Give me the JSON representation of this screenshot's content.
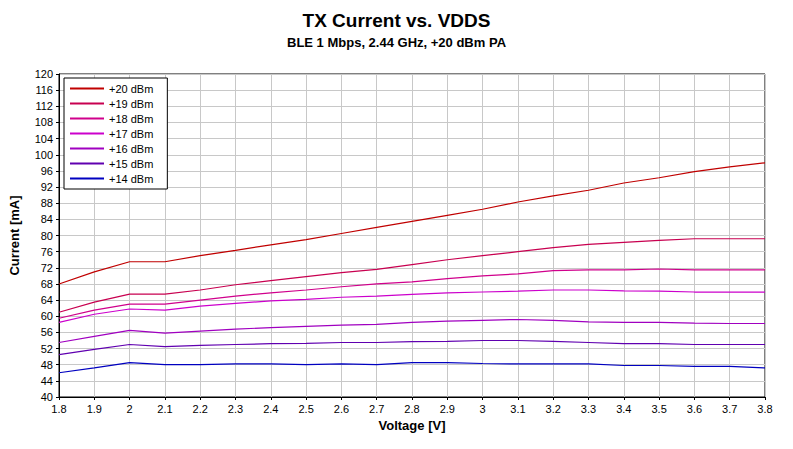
{
  "chart_data": {
    "type": "line",
    "title": "TX Current vs. VDDS",
    "subtitle": "BLE 1 Mbps, 2.44 GHz, +20 dBm PA",
    "x_label": "Voltage [V]",
    "y_label": "Current [mA]",
    "x": [
      1.8,
      1.9,
      2,
      2.1,
      2.2,
      2.3,
      2.4,
      2.5,
      2.6,
      2.7,
      2.8,
      2.9,
      3,
      3.1,
      3.2,
      3.3,
      3.4,
      3.5,
      3.6,
      3.7,
      3.8
    ],
    "xlim": [
      1.8,
      3.8
    ],
    "xticks": [
      1.8,
      1.9,
      2,
      2.1,
      2.2,
      2.3,
      2.4,
      2.5,
      2.6,
      2.7,
      2.8,
      2.9,
      3,
      3.1,
      3.2,
      3.3,
      3.4,
      3.5,
      3.6,
      3.7,
      3.8
    ],
    "ylim": [
      40,
      120
    ],
    "yticks": [
      40,
      44,
      48,
      52,
      56,
      60,
      64,
      68,
      72,
      76,
      80,
      84,
      88,
      92,
      96,
      100,
      104,
      108,
      112,
      116,
      120
    ],
    "grid": true,
    "legend": "upper left",
    "series": [
      {
        "name": "+20 dBm",
        "color": "#c00000",
        "values": [
          68,
          71,
          73.5,
          73.5,
          75,
          76.3,
          77.7,
          79,
          80.5,
          82,
          83.5,
          85,
          86.5,
          88.3,
          89.8,
          91.2,
          93,
          94.3,
          95.8,
          97,
          98
        ]
      },
      {
        "name": "+19 dBm",
        "color": "#c80050",
        "values": [
          61,
          63.5,
          65.5,
          65.5,
          66.5,
          67.8,
          68.8,
          69.8,
          70.8,
          71.6,
          72.8,
          74,
          75,
          76,
          77,
          77.8,
          78.3,
          78.8,
          79.2,
          79.2,
          79.2
        ]
      },
      {
        "name": "+18 dBm",
        "color": "#d0008c",
        "values": [
          59.5,
          61.5,
          63,
          63,
          64,
          65,
          65.8,
          66.5,
          67.3,
          68,
          68.5,
          69.3,
          70,
          70.5,
          71.3,
          71.5,
          71.5,
          71.7,
          71.5,
          71.5,
          71.5
        ]
      },
      {
        "name": "+17 dBm",
        "color": "#cc00cc",
        "values": [
          58.5,
          60.5,
          61.8,
          61.5,
          62.5,
          63.2,
          63.8,
          64.2,
          64.7,
          65,
          65.4,
          65.8,
          66,
          66.2,
          66.5,
          66.5,
          66.3,
          66.2,
          66,
          66,
          66
        ]
      },
      {
        "name": "+16 dBm",
        "color": "#a000c0",
        "values": [
          53.5,
          55,
          56.5,
          55.8,
          56.3,
          56.8,
          57.2,
          57.5,
          57.8,
          58,
          58.5,
          58.8,
          59,
          59.2,
          59,
          58.6,
          58.5,
          58.5,
          58.3,
          58.2,
          58.2
        ]
      },
      {
        "name": "+15 dBm",
        "color": "#6000b0",
        "values": [
          50.5,
          51.8,
          53,
          52.5,
          52.8,
          53,
          53.2,
          53.3,
          53.5,
          53.5,
          53.7,
          53.8,
          54,
          54,
          53.8,
          53.5,
          53.2,
          53.2,
          53,
          53,
          53
        ]
      },
      {
        "name": "+14 dBm",
        "color": "#0000c0",
        "values": [
          46,
          47.2,
          48.5,
          48,
          48,
          48.2,
          48.2,
          48,
          48.2,
          48,
          48.5,
          48.5,
          48.3,
          48.2,
          48.2,
          48.2,
          47.8,
          47.8,
          47.6,
          47.6,
          47.2
        ]
      }
    ]
  }
}
